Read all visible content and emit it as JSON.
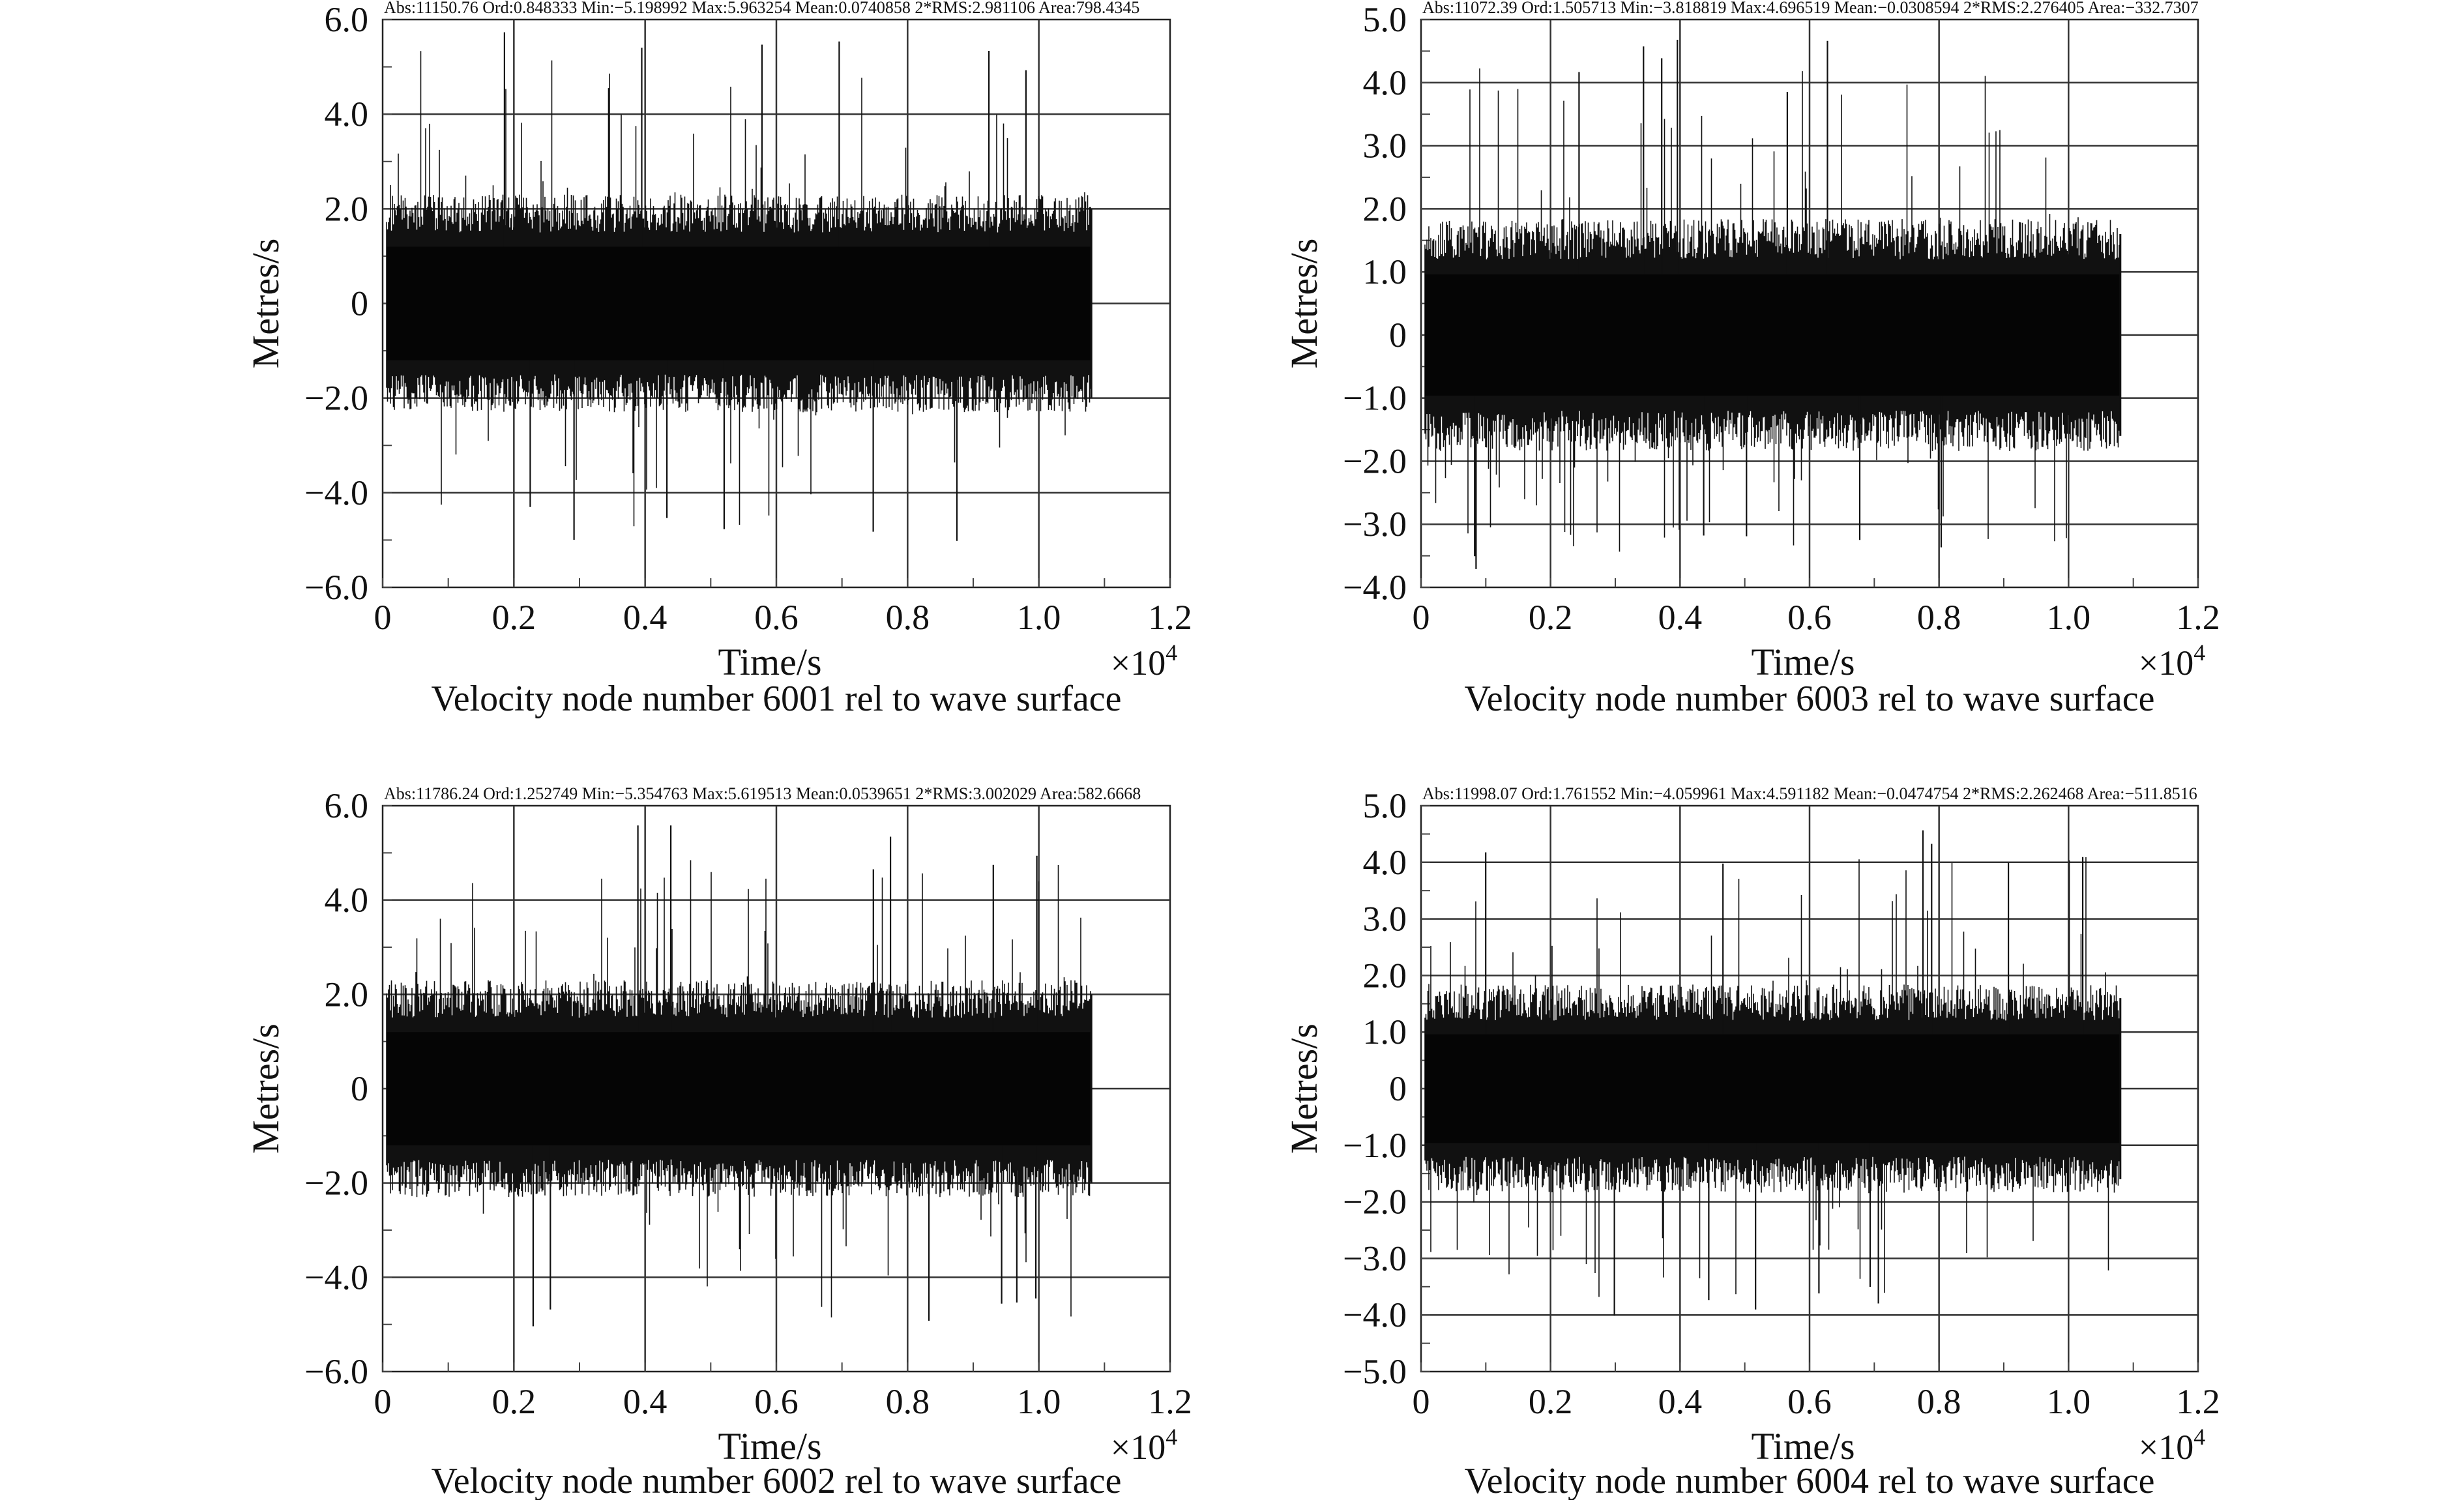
{
  "chart_data": [
    {
      "type": "line",
      "title": "Velocity node number 6001 rel to wave surface",
      "stats": "Abs:11150.76   Ord:0.848333   Min:−5.198992   Max:5.963254   Mean:0.0740858   2*RMS:2.981106   Area:798.4345",
      "xlabel": "Time/s",
      "ylabel": "Metres/s",
      "x_multiplier": "×10",
      "x_multiplier_exp": "4",
      "xlim": [
        0,
        1.2
      ],
      "ylim": [
        -6,
        6
      ],
      "xticks": [
        0,
        0.2,
        0.4,
        0.6,
        0.8,
        1.0,
        1.2
      ],
      "xtick_labels": [
        "0",
        "0.2",
        "0.4",
        "0.6",
        "0.8",
        "1.0",
        "1.2"
      ],
      "yticks": [
        -6,
        -4,
        -2,
        0,
        2,
        4,
        6
      ],
      "ytick_labels": [
        "−6.0",
        "−4.0",
        "−2.0",
        "0",
        "2.0",
        "4.0",
        "6.0"
      ],
      "series": [
        {
          "name": "velocity",
          "x_end": 1.08,
          "band": 2.0,
          "max": 5.963254,
          "min": -5.198992,
          "seed": 11
        }
      ]
    },
    {
      "type": "line",
      "title": "Velocity node number 6003 rel to wave surface",
      "stats": "Abs:11072.39   Ord:1.505713   Min:−3.818819   Max:4.696519   Mean:−0.0308594   2*RMS:2.276405   Area:−332.7307",
      "xlabel": "Time/s",
      "ylabel": "Metres/s",
      "x_multiplier": "×10",
      "x_multiplier_exp": "4",
      "xlim": [
        0,
        1.2
      ],
      "ylim": [
        -4,
        5
      ],
      "xticks": [
        0,
        0.2,
        0.4,
        0.6,
        0.8,
        1.0,
        1.2
      ],
      "xtick_labels": [
        "0",
        "0.2",
        "0.4",
        "0.6",
        "0.8",
        "1.0",
        "1.2"
      ],
      "yticks": [
        -4,
        -3,
        -2,
        -1,
        0,
        1,
        2,
        3,
        4,
        5
      ],
      "ytick_labels": [
        "−4.0",
        "−3.0",
        "−2.0",
        "−1.0",
        "0",
        "1.0",
        "2.0",
        "3.0",
        "4.0",
        "5.0"
      ],
      "series": [
        {
          "name": "velocity",
          "x_end": 1.08,
          "band": 1.6,
          "max": 4.696519,
          "min": -3.818819,
          "seed": 23
        }
      ]
    },
    {
      "type": "line",
      "title": "Velocity node number 6002 rel to wave surface",
      "stats": "Abs:11786.24   Ord:1.252749   Min:−5.354763   Max:5.619513   Mean:0.0539651   2*RMS:3.002029   Area:582.6668",
      "xlabel": "Time/s",
      "ylabel": "Metres/s",
      "x_multiplier": "×10",
      "x_multiplier_exp": "4",
      "xlim": [
        0,
        1.2
      ],
      "ylim": [
        -6,
        6
      ],
      "xticks": [
        0,
        0.2,
        0.4,
        0.6,
        0.8,
        1.0,
        1.2
      ],
      "xtick_labels": [
        "0",
        "0.2",
        "0.4",
        "0.6",
        "0.8",
        "1.0",
        "1.2"
      ],
      "yticks": [
        -6,
        -4,
        -2,
        0,
        2,
        4,
        6
      ],
      "ytick_labels": [
        "−6.0",
        "−4.0",
        "−2.0",
        "0",
        "2.0",
        "4.0",
        "6.0"
      ],
      "series": [
        {
          "name": "velocity",
          "x_end": 1.08,
          "band": 2.0,
          "max": 5.619513,
          "min": -5.354763,
          "seed": 37
        }
      ]
    },
    {
      "type": "line",
      "title": "Velocity node number 6004 rel to wave surface",
      "stats": "Abs:11998.07   Ord:1.761552   Min:−4.059961   Max:4.591182   Mean:−0.0474754   2*RMS:2.262468   Area:−511.8516",
      "xlabel": "Time/s",
      "ylabel": "Metres/s",
      "x_multiplier": "×10",
      "x_multiplier_exp": "4",
      "xlim": [
        0,
        1.2
      ],
      "ylim": [
        -5,
        5
      ],
      "xticks": [
        0,
        0.2,
        0.4,
        0.6,
        0.8,
        1.0,
        1.2
      ],
      "xtick_labels": [
        "0",
        "0.2",
        "0.4",
        "0.6",
        "0.8",
        "1.0",
        "1.2"
      ],
      "yticks": [
        -5,
        -4,
        -3,
        -2,
        -1,
        0,
        1,
        2,
        3,
        4,
        5
      ],
      "ytick_labels": [
        "−5.0",
        "−4.0",
        "−3.0",
        "−2.0",
        "−1.0",
        "0",
        "1.0",
        "2.0",
        "3.0",
        "4.0",
        "5.0"
      ],
      "series": [
        {
          "name": "velocity",
          "x_end": 1.08,
          "band": 1.6,
          "max": 4.591182,
          "min": -4.059961,
          "seed": 53
        }
      ]
    }
  ]
}
